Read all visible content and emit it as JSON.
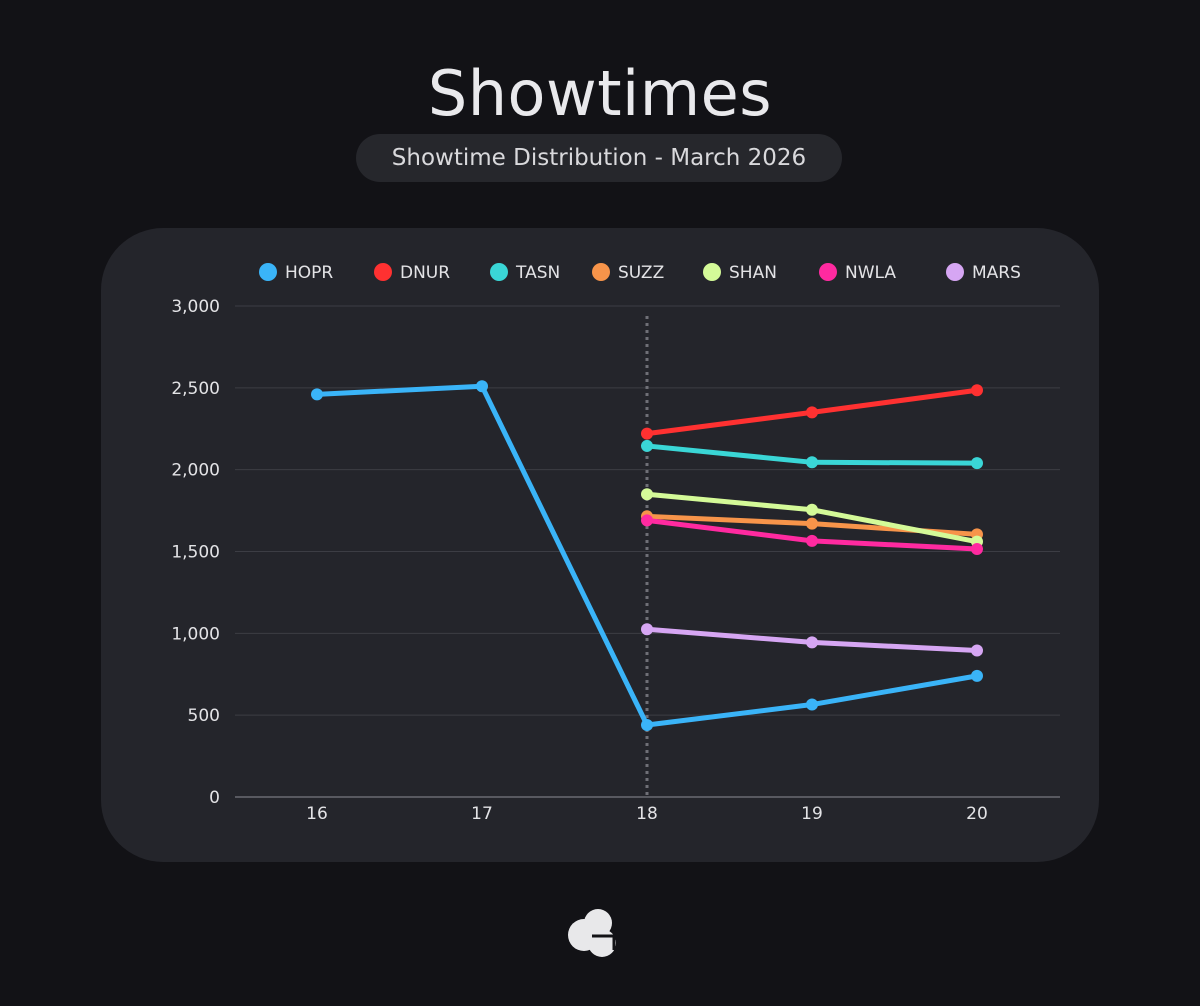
{
  "header": {
    "title": "Showtimes",
    "subtitle": "Showtime Distribution - March 2026"
  },
  "logo": {
    "icon": "cloud-logo-icon",
    "color": "#e8e8ea"
  },
  "chart_data": {
    "type": "line",
    "title": "Showtimes",
    "subtitle": "Showtime Distribution - March 2026",
    "xlabel": "",
    "ylabel": "",
    "categories": [
      "16",
      "17",
      "18",
      "19",
      "20"
    ],
    "ylim": [
      0,
      3000
    ],
    "yticks": [
      0,
      500,
      1000,
      1500,
      2000,
      2500,
      3000
    ],
    "ytick_labels": [
      "0",
      "500",
      "1,000",
      "1,500",
      "2,000",
      "2,500",
      "3,000"
    ],
    "grid": true,
    "legend": "top",
    "marker_category": "18",
    "series": [
      {
        "name": "HOPR",
        "color": "#3ab4f8",
        "values": [
          2460,
          2510,
          440,
          565,
          740
        ]
      },
      {
        "name": "DNUR",
        "color": "#ff3131",
        "values": [
          null,
          null,
          2220,
          2350,
          2485
        ]
      },
      {
        "name": "TASN",
        "color": "#3ad6d6",
        "values": [
          null,
          null,
          2145,
          2045,
          2040
        ]
      },
      {
        "name": "SUZZ",
        "color": "#f7944a",
        "values": [
          null,
          null,
          1715,
          1670,
          1605
        ]
      },
      {
        "name": "SHAN",
        "color": "#d4fa98",
        "values": [
          null,
          null,
          1850,
          1755,
          1560
        ]
      },
      {
        "name": "NWLA",
        "color": "#ff2aa0",
        "values": [
          null,
          null,
          1690,
          1565,
          1515
        ]
      },
      {
        "name": "MARS",
        "color": "#d6a6f3",
        "values": [
          null,
          null,
          1025,
          945,
          895
        ]
      }
    ]
  }
}
